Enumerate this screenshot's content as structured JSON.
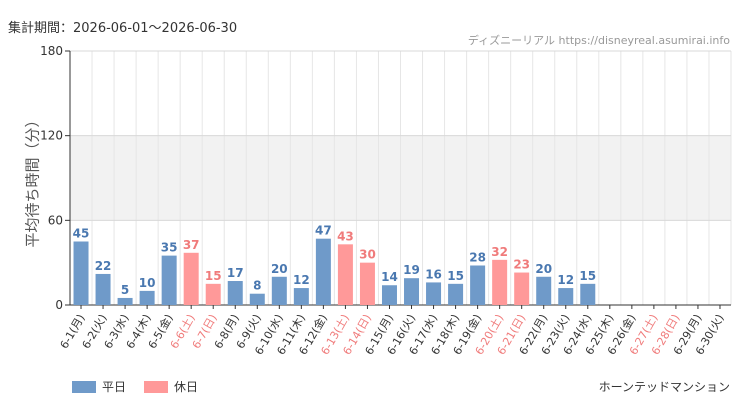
{
  "header": {
    "period_label": "集計期間：2026-06-01〜2026-06-30",
    "source": "ディズニーリアル https://disneyreal.asumirai.info"
  },
  "footer": {
    "attraction": "ホーンテッドマンション"
  },
  "legend": [
    {
      "name": "平日",
      "color": "#6f9ac9"
    },
    {
      "name": "休日",
      "color": "#ff9999"
    }
  ],
  "colors": {
    "weekday": "#6f9ac9",
    "holiday": "#ff9999",
    "weekday_label": "#4a78b0",
    "holiday_label": "#f07b7b",
    "band": "#f2f2f2"
  },
  "chart_data": {
    "type": "bar",
    "ylabel": "平均待ち時間（分）",
    "ylim": [
      0,
      180
    ],
    "yticks": [
      0,
      60,
      120,
      180
    ],
    "shaded_band": [
      60,
      120
    ],
    "grid": true,
    "legend_position": "bottom-left",
    "categories": [
      "6-1(月)",
      "6-2(火)",
      "6-3(水)",
      "6-4(木)",
      "6-5(金)",
      "6-6(土)",
      "6-7(日)",
      "6-8(月)",
      "6-9(火)",
      "6-10(水)",
      "6-11(木)",
      "6-12(金)",
      "6-13(土)",
      "6-14(日)",
      "6-15(月)",
      "6-16(火)",
      "6-17(水)",
      "6-18(木)",
      "6-19(金)",
      "6-20(土)",
      "6-21(日)",
      "6-22(月)",
      "6-23(火)",
      "6-24(水)",
      "6-25(木)",
      "6-26(金)",
      "6-27(土)",
      "6-28(日)",
      "6-29(月)",
      "6-30(火)"
    ],
    "values": [
      45,
      22,
      5,
      10,
      35,
      37,
      15,
      17,
      8,
      20,
      12,
      47,
      43,
      30,
      14,
      19,
      16,
      15,
      28,
      32,
      23,
      20,
      12,
      15,
      null,
      null,
      null,
      null,
      null,
      null
    ],
    "day_type": [
      "平日",
      "平日",
      "平日",
      "平日",
      "平日",
      "休日",
      "休日",
      "平日",
      "平日",
      "平日",
      "平日",
      "平日",
      "休日",
      "休日",
      "平日",
      "平日",
      "平日",
      "平日",
      "平日",
      "休日",
      "休日",
      "平日",
      "平日",
      "平日",
      "平日",
      "平日",
      "休日",
      "休日",
      "平日",
      "平日"
    ]
  }
}
